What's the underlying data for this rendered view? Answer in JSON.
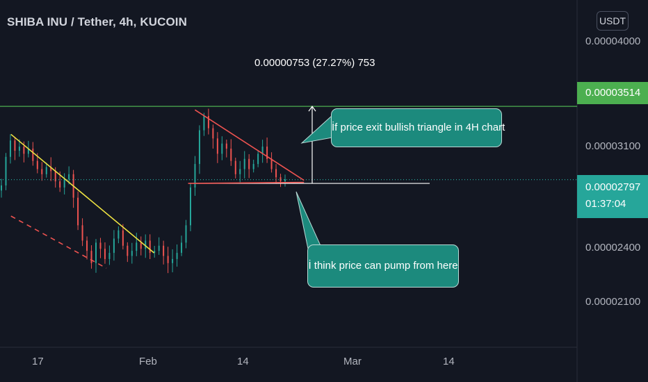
{
  "title": "SHIBA INU / Tether, 4h, KUCOIN",
  "currency_button": "USDT",
  "measure_label": "0.00000753 (27.27%) 753",
  "annotations": [
    {
      "text": "İf price exit bullish triangle in 4H chart"
    },
    {
      "text": "İ think price can pump from here"
    }
  ],
  "price_tags": {
    "target": {
      "value": "0.00003514",
      "color": "#4caf50"
    },
    "current": {
      "value": "0.00002797",
      "countdown": "01:37:04",
      "color": "#26a69a"
    }
  },
  "chart_data": {
    "type": "candlestick",
    "y_ticks": [
      "0.00004000",
      "0.00003100",
      "0.00002400",
      "0.00002100"
    ],
    "x_ticks": [
      "17",
      "Feb",
      "14",
      "Mar",
      "14"
    ],
    "colors": {
      "up": "#26a69a",
      "down": "#ef5350",
      "background": "#131722"
    },
    "close_series": [
      2.74,
      3.02,
      3.18,
      3.08,
      3.12,
      3.05,
      3.1,
      2.98,
      2.9,
      2.85,
      2.92,
      2.88,
      2.78,
      2.72,
      2.8,
      2.85,
      2.62,
      2.35,
      2.2,
      2.1,
      1.98,
      2.18,
      2.12,
      2.02,
      2.08,
      2.22,
      2.3,
      2.15,
      2.05,
      2.1,
      2.18,
      2.12,
      2.2,
      2.08,
      2.1,
      2.15,
      2.05,
      1.98,
      2.02,
      2.08,
      2.18,
      2.35,
      2.72,
      2.95,
      3.28,
      3.42,
      3.3,
      3.2,
      3.05,
      3.15,
      3.1,
      2.98,
      2.85,
      2.9,
      3.0,
      2.9,
      2.95,
      3.05,
      3.12,
      3.0,
      2.9,
      2.82,
      2.78,
      2.8
    ],
    "trendlines": [
      {
        "color": "#f0e442",
        "style": "solid",
        "from": {
          "date": "2021-01-13",
          "price": 3.24e-05
        },
        "to": {
          "date": "2021-02-03",
          "price": 2.08e-05
        }
      },
      {
        "color": "#ef5350",
        "style": "dashed",
        "from": {
          "date": "2021-01-13",
          "price": 2.44e-05
        },
        "to": {
          "date": "2021-01-27",
          "price": 1.93e-05
        }
      },
      {
        "color": "#ef5350",
        "style": "solid",
        "from": {
          "date": "2021-02-09",
          "price": 3.48e-05
        },
        "to": {
          "date": "2021-02-25",
          "price": 2.79e-05
        }
      },
      {
        "color": "#ef5350",
        "style": "solid",
        "from": {
          "date": "2021-02-08",
          "price": 2.76e-05
        },
        "to": {
          "date": "2021-02-25",
          "price": 2.77e-05
        }
      }
    ],
    "horizontal_levels": [
      {
        "price": 3.514e-05,
        "color": "#4caf50"
      },
      {
        "price": 2.797e-05,
        "color": "#26a69a",
        "style": "dotted"
      },
      {
        "price": 2.76e-05,
        "color": "#ffffff"
      }
    ],
    "measure": {
      "from_price": 2.76e-05,
      "to_price": 3.514e-05
    }
  }
}
